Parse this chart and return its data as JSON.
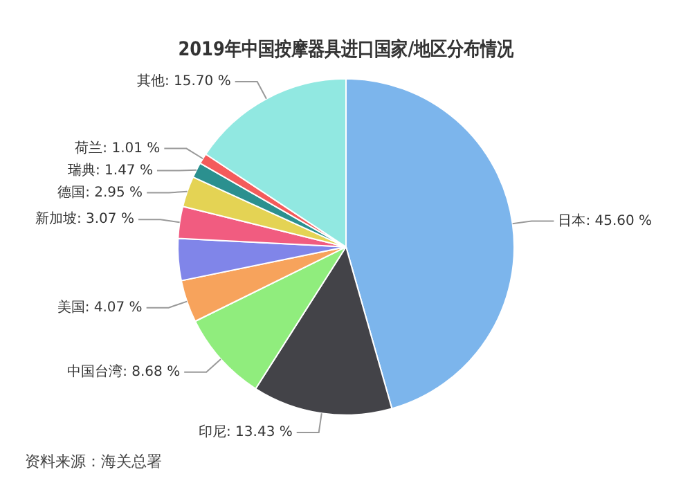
{
  "chart_data": {
    "type": "pie",
    "title": "2019年中国按摩器具进口国家/地区分布情况",
    "categories": [
      "日本",
      "印尼",
      "中国台湾",
      "美国",
      null,
      "新加坡",
      "德国",
      "瑞典",
      "荷兰",
      "其他"
    ],
    "values": [
      45.6,
      13.43,
      8.68,
      4.07,
      4.02,
      3.07,
      2.95,
      1.47,
      1.01,
      15.7
    ],
    "value_labels": [
      "45.60 %",
      "13.43 %",
      "8.68 %",
      "4.07 %",
      null,
      "3.07 %",
      "2.95 %",
      "1.47 %",
      "1.01 %",
      "15.70 %"
    ],
    "colors": [
      "#7cb5ec",
      "#434348",
      "#90ed7d",
      "#f7a35c",
      "#8085e9",
      "#f15c80",
      "#e4d354",
      "#2b908f",
      "#f45b5b",
      "#91e8e1"
    ],
    "annotations": [
      "资料来源：海关总署"
    ],
    "legend": false
  }
}
